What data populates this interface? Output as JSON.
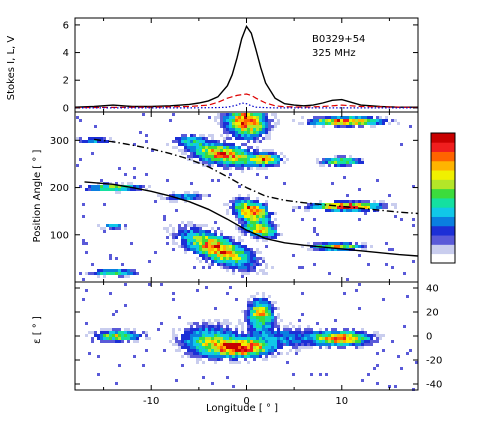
{
  "figure": {
    "source_label": "B0329+54",
    "frequency_label": "325 MHz"
  },
  "colors": {
    "total_intensity": "#000000",
    "linear": "#dd0000",
    "circular": "#0000cc",
    "colormap": [
      "#ffffff",
      "#c9cdee",
      "#5a5ad8",
      "#1c2fd6",
      "#0a7fe0",
      "#10c8e8",
      "#14e0a0",
      "#3cdc3c",
      "#b4e628",
      "#f0f000",
      "#ffb400",
      "#ff6400",
      "#f01e1e",
      "#c80000"
    ]
  },
  "chart_data": [
    {
      "type": "line",
      "panel": "profile",
      "ylabel": "Stokes I, L, V",
      "xlim": [
        -18,
        18
      ],
      "ylim": [
        -0.3,
        6.5
      ],
      "yticks": [
        0,
        2,
        4,
        6
      ],
      "series": [
        {
          "key": "I",
          "style": "solid",
          "x": [
            -18,
            -16,
            -14,
            -12,
            -10,
            -8,
            -6,
            -5,
            -4,
            -3,
            -2,
            -1.5,
            -1,
            -0.5,
            0,
            0.5,
            1,
            1.5,
            2,
            3,
            4,
            5,
            6,
            7,
            8,
            9,
            10,
            11,
            12,
            14,
            16,
            18
          ],
          "y": [
            0.05,
            0.1,
            0.2,
            0.1,
            0.1,
            0.15,
            0.25,
            0.35,
            0.5,
            0.8,
            1.6,
            2.4,
            3.6,
            5.0,
            5.9,
            5.4,
            4.2,
            2.9,
            1.8,
            0.7,
            0.3,
            0.2,
            0.15,
            0.2,
            0.35,
            0.55,
            0.6,
            0.4,
            0.2,
            0.1,
            0.05,
            0.05
          ]
        },
        {
          "key": "L",
          "style": "dashed",
          "x": [
            -18,
            -10,
            -6,
            -4,
            -3,
            -2,
            -1,
            0,
            0.5,
            1,
            2,
            3,
            4,
            6,
            8,
            10,
            12,
            18
          ],
          "y": [
            0.02,
            0.05,
            0.1,
            0.2,
            0.4,
            0.7,
            0.9,
            1.0,
            0.9,
            0.7,
            0.35,
            0.15,
            0.08,
            0.05,
            0.1,
            0.2,
            0.1,
            0.02
          ]
        },
        {
          "key": "V",
          "style": "dotted",
          "x": [
            -18,
            -6,
            -3,
            -2,
            -1,
            -0.5,
            0,
            0.5,
            1,
            2,
            3,
            6,
            18
          ],
          "y": [
            0,
            0,
            0.02,
            0.05,
            0.2,
            0.35,
            0.3,
            0.15,
            0.05,
            0.02,
            0,
            0,
            0
          ]
        }
      ]
    },
    {
      "type": "heatmap",
      "panel": "position-angle",
      "ylabel": "Position Angle [ ° ]",
      "xlim": [
        -18,
        18
      ],
      "ylim": [
        0,
        360
      ],
      "yticks": [
        100,
        200,
        300
      ],
      "fit_curves": [
        {
          "key": "primary-rvm",
          "style": "solid",
          "x": [
            -17,
            -14,
            -12,
            -10,
            -8,
            -6,
            -4,
            -2,
            0,
            2,
            4,
            6,
            8,
            10,
            12,
            14,
            16,
            18
          ],
          "y": [
            212,
            207,
            200,
            192,
            182,
            170,
            154,
            133,
            110,
            92,
            83,
            78,
            74,
            70,
            66,
            62,
            58,
            55
          ]
        },
        {
          "key": "orthogonal-rvm",
          "style": "dash-dot",
          "x": [
            -16,
            -14,
            -12,
            -10,
            -8,
            -6,
            -4,
            -2,
            0,
            2,
            4,
            6,
            8,
            10,
            12,
            14,
            16,
            18
          ],
          "y": [
            302,
            297,
            290,
            282,
            272,
            260,
            244,
            223,
            200,
            182,
            173,
            168,
            164,
            160,
            156,
            152,
            148,
            145
          ]
        }
      ],
      "blobs": [
        {
          "x": 0,
          "y": 340,
          "sx": 1.4,
          "sy": 22,
          "a": 0.9,
          "tilt": -1.5
        },
        {
          "x": -2.5,
          "y": 270,
          "sx": 2.2,
          "sy": 14,
          "a": 0.85,
          "tilt": -3
        },
        {
          "x": 2.0,
          "y": 260,
          "sx": 1.0,
          "sy": 8,
          "a": 0.8,
          "tilt": 0
        },
        {
          "x": 0.5,
          "y": 150,
          "sx": 1.2,
          "sy": 14,
          "a": 0.95,
          "tilt": -4
        },
        {
          "x": -3.0,
          "y": 70,
          "sx": 2.4,
          "sy": 18,
          "a": 0.9,
          "tilt": -7
        },
        {
          "x": 1.5,
          "y": 110,
          "sx": 1.2,
          "sy": 10,
          "a": 0.7,
          "tilt": -3
        },
        {
          "x": 10.5,
          "y": 340,
          "sx": 2.4,
          "sy": 6,
          "a": 0.95,
          "tilt": 0
        },
        {
          "x": 10.0,
          "y": 255,
          "sx": 1.4,
          "sy": 6,
          "a": 0.6,
          "tilt": 0
        },
        {
          "x": 10.5,
          "y": 160,
          "sx": 2.4,
          "sy": 6,
          "a": 0.95,
          "tilt": 0
        },
        {
          "x": 9.5,
          "y": 75,
          "sx": 1.8,
          "sy": 5,
          "a": 0.7,
          "tilt": 0
        },
        {
          "x": -14.0,
          "y": 200,
          "sx": 2.0,
          "sy": 5,
          "a": 0.6,
          "tilt": 0
        },
        {
          "x": -14.0,
          "y": 20,
          "sx": 1.6,
          "sy": 5,
          "a": 0.55,
          "tilt": 0
        },
        {
          "x": -16,
          "y": 300,
          "sx": 1.2,
          "sy": 4,
          "a": 0.4,
          "tilt": 0
        },
        {
          "x": -14.0,
          "y": 118,
          "sx": 0.9,
          "sy": 4,
          "a": 0.35,
          "tilt": 0
        },
        {
          "x": -6.5,
          "y": 180,
          "sx": 1.5,
          "sy": 6,
          "a": 0.35,
          "tilt": 0
        },
        {
          "x": -6.0,
          "y": 300,
          "sx": 1.2,
          "sy": 8,
          "a": 0.35,
          "tilt": 0
        }
      ]
    },
    {
      "type": "heatmap",
      "panel": "ellipticity",
      "ylabel": "ε [ ° ]",
      "xlabel": "Longitude [ ° ]",
      "xlim": [
        -18,
        18
      ],
      "ylim": [
        -45,
        45
      ],
      "xticks": [
        -10,
        0,
        10
      ],
      "yticks": [
        -40,
        -20,
        0,
        20,
        40
      ],
      "blobs": [
        {
          "x": -0.5,
          "y": -10,
          "sx": 2.0,
          "sy": 5,
          "a": 0.95,
          "tilt": 0
        },
        {
          "x": 1.5,
          "y": 18,
          "sx": 0.9,
          "sy": 8,
          "a": 0.75,
          "tilt": 0
        },
        {
          "x": -4.0,
          "y": -4,
          "sx": 2.0,
          "sy": 9,
          "a": 0.5,
          "tilt": 0
        },
        {
          "x": 10.0,
          "y": -2,
          "sx": 2.0,
          "sy": 4,
          "a": 0.85,
          "tilt": 0
        },
        {
          "x": -13.5,
          "y": 0,
          "sx": 1.6,
          "sy": 3,
          "a": 0.65,
          "tilt": 0
        },
        {
          "x": 4.0,
          "y": -1,
          "sx": 2.5,
          "sy": 6,
          "a": 0.3,
          "tilt": 0
        }
      ]
    }
  ]
}
